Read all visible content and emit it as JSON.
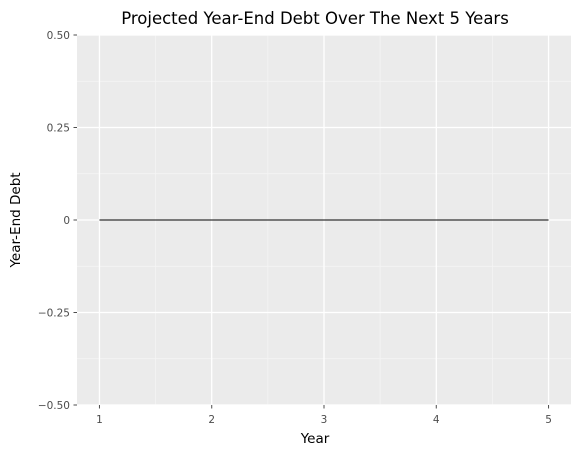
{
  "chart_data": {
    "type": "line",
    "title": "Projected Year-End Debt Over The Next 5 Years",
    "xlabel": "Year",
    "ylabel": "Year-End Debt",
    "x": [
      1,
      2,
      3,
      4,
      5
    ],
    "series": [
      {
        "values": [
          0,
          0,
          0,
          0,
          0
        ]
      }
    ],
    "xlim": [
      0.8,
      5.2
    ],
    "ylim": [
      -0.5,
      0.5
    ],
    "x_ticks": [
      1,
      2,
      3,
      4,
      5
    ],
    "x_tick_labels": [
      "1",
      "2",
      "3",
      "4",
      "5"
    ],
    "y_ticks": [
      0.5,
      0.25,
      0,
      -0.25,
      -0.5
    ],
    "y_tick_labels": [
      "0.50",
      "0.25",
      "0",
      "−0.25",
      "−0.50"
    ],
    "grid": true,
    "legend": "none",
    "colors": {
      "panel_background": "#ebebeb",
      "grid_major": "#ffffff",
      "grid_minor": "#f5f5f5",
      "line": "#000000",
      "tick_label": "#4d4d4d",
      "axis_title": "#000000"
    }
  }
}
